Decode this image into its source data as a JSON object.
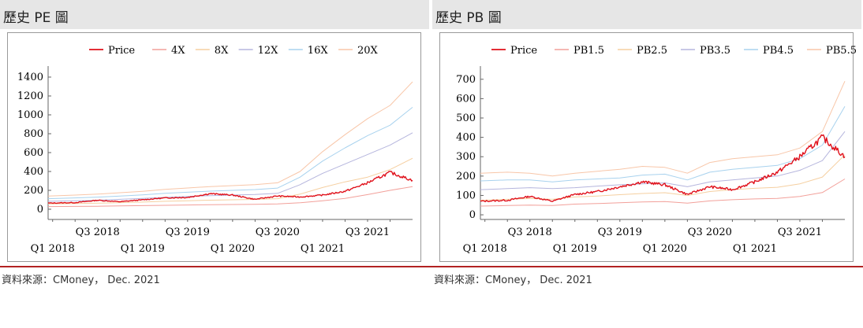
{
  "panels": [
    {
      "title": "歷史 PE 圖",
      "source": "資料來源：CMoney，  Dec. 2021",
      "chart_data": {
        "type": "line",
        "title": "",
        "xlabel": "",
        "ylabel": "",
        "ylim": [
          -100,
          1500
        ],
        "yticks": [
          0,
          200,
          400,
          600,
          800,
          1000,
          1200,
          1400
        ],
        "xlim": [
          2017.95,
          2022.0
        ],
        "xticks_upper": [
          {
            "x": 2018.5,
            "label": "Q3 2018"
          },
          {
            "x": 2019.5,
            "label": "Q3 2019"
          },
          {
            "x": 2020.5,
            "label": "Q3 2020"
          },
          {
            "x": 2021.5,
            "label": "Q3 2021"
          }
        ],
        "xticks_lower": [
          {
            "x": 2018.0,
            "label": "Q1 2018"
          },
          {
            "x": 2019.0,
            "label": "Q1 2019"
          },
          {
            "x": 2020.0,
            "label": "Q1 2020"
          },
          {
            "x": 2021.0,
            "label": "Q1 2021"
          }
        ],
        "legend_position": "top",
        "grid": false,
        "x": [
          2017.95,
          2018.25,
          2018.5,
          2018.75,
          2019.0,
          2019.25,
          2019.5,
          2019.75,
          2020.0,
          2020.25,
          2020.5,
          2020.75,
          2021.0,
          2021.25,
          2021.5,
          2021.75,
          2022.0
        ],
        "series": [
          {
            "name": "Price",
            "color": "#e0101a",
            "width": 1.4,
            "values": [
              65,
              70,
              95,
              80,
              100,
              120,
              125,
              165,
              150,
              105,
              140,
              130,
              150,
              190,
              280,
              390,
              305
            ]
          },
          {
            "name": "4X",
            "color": "#f2a09a",
            "width": 1,
            "values": [
              28,
              30,
              32,
              35,
              38,
              42,
              45,
              48,
              50,
              52,
              56,
              68,
              90,
              115,
              155,
              200,
              240
            ]
          },
          {
            "name": "8X",
            "color": "#f5cfa0",
            "width": 1,
            "values": [
              56,
              60,
              64,
              70,
              76,
              84,
              90,
              96,
              100,
              104,
              112,
              160,
              230,
              290,
              340,
              420,
              540
            ]
          },
          {
            "name": "12X",
            "color": "#b5b5dd",
            "width": 1,
            "values": [
              84,
              90,
              96,
              105,
              114,
              126,
              135,
              144,
              150,
              156,
              168,
              260,
              380,
              480,
              580,
              680,
              810
            ]
          },
          {
            "name": "16X",
            "color": "#a8d2ee",
            "width": 1,
            "values": [
              112,
              120,
              128,
              140,
              152,
              168,
              180,
              192,
              200,
              208,
              224,
              340,
              510,
              650,
              780,
              890,
              1080
            ]
          },
          {
            "name": "20X",
            "color": "#f8c6a8",
            "width": 1,
            "values": [
              140,
              150,
              160,
              175,
              190,
              210,
              225,
              240,
              250,
              260,
              280,
              400,
              610,
              790,
              960,
              1100,
              1350
            ]
          }
        ]
      }
    },
    {
      "title": "歷史 PB 圖",
      "source": "資料來源：CMoney，  Dec. 2021",
      "chart_data": {
        "type": "line",
        "title": "",
        "xlabel": "",
        "ylabel": "",
        "ylim": [
          -20,
          760
        ],
        "yticks": [
          0,
          100,
          200,
          300,
          400,
          500,
          600,
          700
        ],
        "xlim": [
          2017.95,
          2022.0
        ],
        "xticks_upper": [
          {
            "x": 2018.5,
            "label": "Q3 2018"
          },
          {
            "x": 2019.5,
            "label": "Q3 2019"
          },
          {
            "x": 2020.5,
            "label": "Q3 2020"
          },
          {
            "x": 2021.5,
            "label": "Q3 2021"
          }
        ],
        "xticks_lower": [
          {
            "x": 2018.0,
            "label": "Q1 2018"
          },
          {
            "x": 2019.0,
            "label": "Q1 2019"
          },
          {
            "x": 2020.0,
            "label": "Q1 2020"
          },
          {
            "x": 2021.0,
            "label": "Q1 2021"
          }
        ],
        "legend_position": "top",
        "grid": false,
        "x": [
          2017.95,
          2018.25,
          2018.5,
          2018.75,
          2019.0,
          2019.25,
          2019.5,
          2019.75,
          2020.0,
          2020.25,
          2020.5,
          2020.75,
          2021.0,
          2021.25,
          2021.5,
          2021.75,
          2022.0
        ],
        "series": [
          {
            "name": "Price",
            "color": "#e0101a",
            "width": 1.4,
            "values": [
              70,
              75,
              95,
              70,
              105,
              120,
              145,
              170,
              155,
              105,
              145,
              130,
              170,
              220,
              300,
              400,
              300
            ]
          },
          {
            "name": "PB1.5",
            "color": "#f2a09a",
            "width": 1,
            "values": [
              45,
              48,
              50,
              48,
              55,
              58,
              62,
              66,
              68,
              60,
              72,
              78,
              82,
              85,
              95,
              115,
              185
            ]
          },
          {
            "name": "PB2.5",
            "color": "#f5cfa0",
            "width": 1,
            "values": [
              75,
              80,
              84,
              80,
              92,
              97,
              104,
              110,
              114,
              100,
              120,
              130,
              137,
              142,
              160,
              195,
              310
            ]
          },
          {
            "name": "PB3.5",
            "color": "#b5b5dd",
            "width": 1,
            "values": [
              130,
              135,
              140,
              135,
              140,
              148,
              155,
              160,
              165,
              145,
              170,
              180,
              190,
              200,
              230,
              280,
              430
            ]
          },
          {
            "name": "PB4.5",
            "color": "#a8d2ee",
            "width": 1,
            "values": [
              175,
              180,
              180,
              170,
              180,
              185,
              190,
              205,
              210,
              180,
              220,
              235,
              245,
              255,
              290,
              360,
              560
            ]
          },
          {
            "name": "PB5.5",
            "color": "#f8c6a8",
            "width": 1,
            "values": [
              215,
              220,
              215,
              200,
              215,
              225,
              235,
              250,
              245,
              215,
              270,
              290,
              300,
              310,
              345,
              430,
              690
            ]
          }
        ]
      }
    }
  ]
}
